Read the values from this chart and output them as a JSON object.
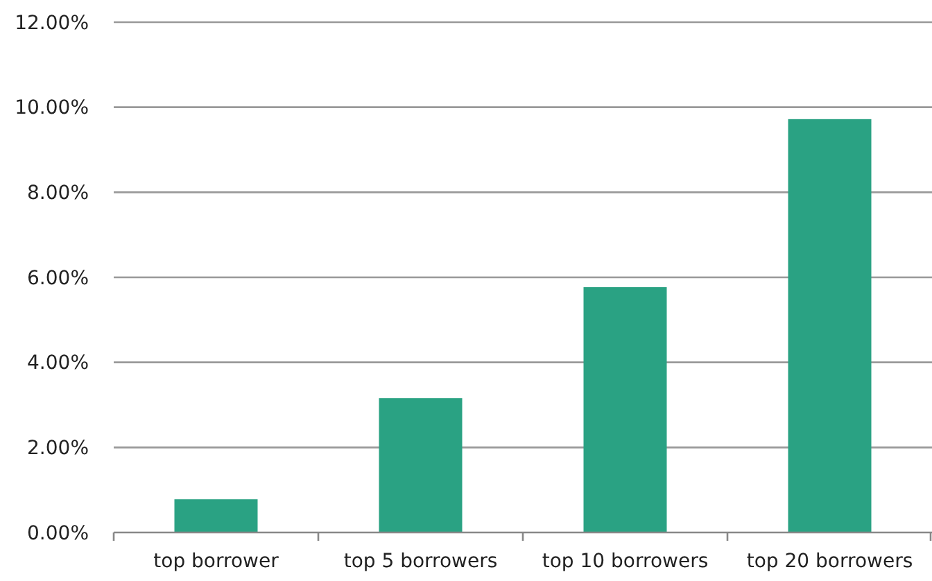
{
  "chart_data": {
    "type": "bar",
    "categories": [
      "top borrower",
      "top 5 borrowers",
      "top 10 borrowers",
      "top 20 borrowers"
    ],
    "values": [
      0.78,
      3.16,
      5.77,
      9.72
    ],
    "color": "#2aa283",
    "ylim": [
      0,
      12
    ],
    "yticks": [
      {
        "value": 0,
        "label": "0.00%"
      },
      {
        "value": 2,
        "label": "2.00%"
      },
      {
        "value": 4,
        "label": "4.00%"
      },
      {
        "value": 6,
        "label": "6.00%"
      },
      {
        "value": 8,
        "label": "8.00%"
      },
      {
        "value": 10,
        "label": "10.00%"
      },
      {
        "value": 12,
        "label": "12.00%"
      }
    ],
    "grid": "y"
  }
}
